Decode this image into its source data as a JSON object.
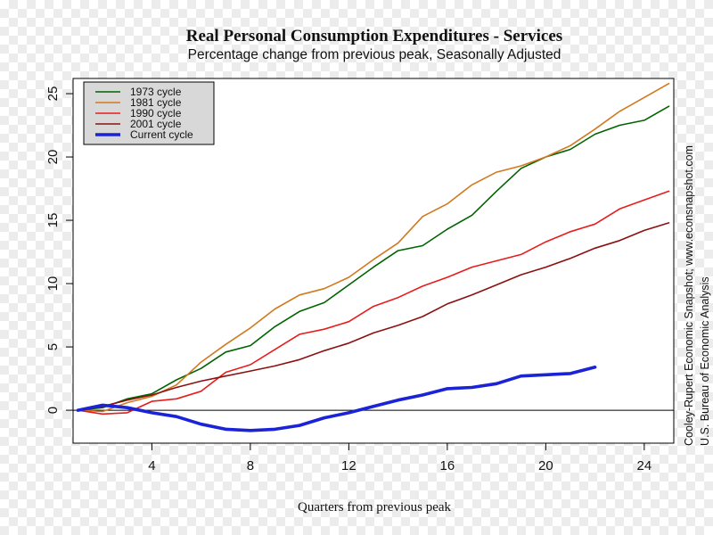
{
  "chart_data": {
    "type": "line",
    "title": "Real Personal Consumption Expenditures - Services",
    "subtitle": "Percentage change from previous peak, Seasonally Adjusted",
    "xlabel": "Quarters from previous peak",
    "ylabel": "",
    "xlim": [
      0.8,
      25.2
    ],
    "ylim": [
      -2.6,
      26.2
    ],
    "xticks": [
      4,
      8,
      12,
      16,
      20,
      24
    ],
    "yticks": [
      0,
      5,
      10,
      15,
      20,
      25
    ],
    "reference_line_y": 0,
    "legend_position": "top-left",
    "grid": false,
    "series": [
      {
        "name": "1973 cycle",
        "color": "#006400",
        "width": 1.6,
        "x": [
          1,
          2,
          3,
          4,
          5,
          6,
          7,
          8,
          9,
          10,
          11,
          12,
          13,
          14,
          15,
          16,
          17,
          18,
          19,
          20,
          21,
          22,
          23,
          24,
          25
        ],
        "values": [
          0,
          0.2,
          0.9,
          1.3,
          2.4,
          3.3,
          4.6,
          5.1,
          6.6,
          7.8,
          8.5,
          9.9,
          11.3,
          12.6,
          13.0,
          14.3,
          15.4,
          17.3,
          19.1,
          20.0,
          20.6,
          21.8,
          22.5,
          22.9,
          24.0
        ]
      },
      {
        "name": "1981 cycle",
        "color": "#d2781e",
        "width": 1.6,
        "x": [
          1,
          2,
          3,
          4,
          5,
          6,
          7,
          8,
          9,
          10,
          11,
          12,
          13,
          14,
          15,
          16,
          17,
          18,
          19,
          20,
          21,
          22,
          23,
          24,
          25
        ],
        "values": [
          0,
          -0.1,
          0.6,
          1.1,
          2.0,
          3.8,
          5.2,
          6.5,
          8.0,
          9.1,
          9.6,
          10.5,
          11.9,
          13.2,
          15.3,
          16.3,
          17.8,
          18.8,
          19.3,
          20.0,
          20.9,
          22.2,
          23.6,
          24.7,
          25.8
        ]
      },
      {
        "name": "1990 cycle",
        "color": "#e81c1c",
        "width": 1.6,
        "x": [
          1,
          2,
          3,
          4,
          5,
          6,
          7,
          8,
          9,
          10,
          11,
          12,
          13,
          14,
          15,
          16,
          17,
          18,
          19,
          20,
          21,
          22,
          23,
          24,
          25
        ],
        "values": [
          0,
          -0.3,
          -0.2,
          0.7,
          0.9,
          1.5,
          3.0,
          3.6,
          4.8,
          6.0,
          6.4,
          7.0,
          8.2,
          8.9,
          9.8,
          10.5,
          11.3,
          11.8,
          12.3,
          13.3,
          14.1,
          14.7,
          15.9,
          16.6,
          17.3
        ]
      },
      {
        "name": "2001 cycle",
        "color": "#8b1010",
        "width": 1.6,
        "x": [
          1,
          2,
          3,
          4,
          5,
          6,
          7,
          8,
          9,
          10,
          11,
          12,
          13,
          14,
          15,
          16,
          17,
          18,
          19,
          20,
          21,
          22,
          23,
          24,
          25
        ],
        "values": [
          0,
          0.3,
          0.8,
          1.2,
          1.8,
          2.3,
          2.7,
          3.1,
          3.5,
          4.0,
          4.7,
          5.3,
          6.1,
          6.7,
          7.4,
          8.4,
          9.1,
          9.9,
          10.7,
          11.3,
          12.0,
          12.8,
          13.4,
          14.2,
          14.8
        ]
      },
      {
        "name": "Current cycle",
        "color": "#1a23d6",
        "width": 3.6,
        "x": [
          1,
          2,
          3,
          4,
          5,
          6,
          7,
          8,
          9,
          10,
          11,
          12,
          13,
          14,
          15,
          16,
          17,
          18,
          19,
          20,
          21,
          22
        ],
        "values": [
          0,
          0.4,
          0.2,
          -0.2,
          -0.5,
          -1.1,
          -1.5,
          -1.6,
          -1.5,
          -1.2,
          -0.6,
          -0.2,
          0.3,
          0.8,
          1.2,
          1.7,
          1.8,
          2.1,
          2.7,
          2.8,
          2.9,
          3.4
        ]
      }
    ]
  },
  "side_notes": {
    "credit": "Cooley-Rupert Economic Snapshot; www.econsnapshot.com",
    "source": "U.S. Bureau of Economic Analysis"
  }
}
